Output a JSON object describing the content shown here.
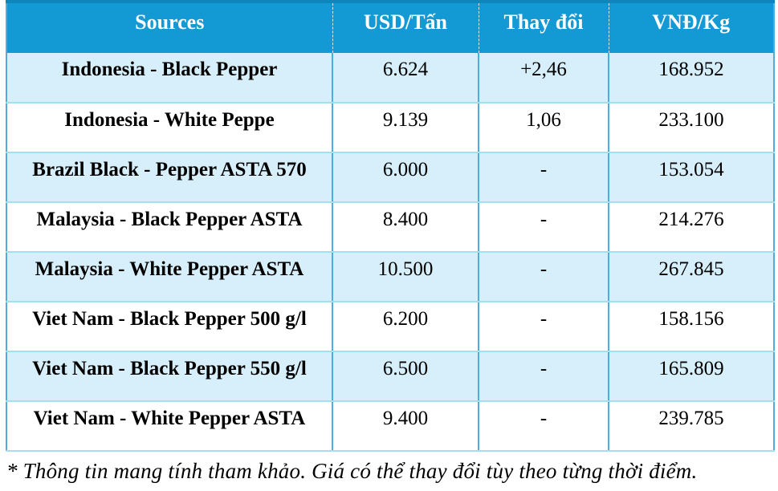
{
  "chart_data": {
    "type": "table",
    "title": "Pepper price table by source",
    "columns": [
      "Sources",
      "USD/Tấn",
      "Thay đổi",
      "VNĐ/Kg"
    ],
    "rows": [
      [
        "Indonesia - Black Pepper",
        "6.624",
        "+2,46",
        "168.952"
      ],
      [
        "Indonesia - White Peppe",
        "9.139",
        "1,06",
        "233.100"
      ],
      [
        "Brazil Black - Pepper ASTA 570",
        "6.000",
        "-",
        "153.054"
      ],
      [
        "Malaysia - Black Pepper ASTA",
        "8.400",
        "-",
        "214.276"
      ],
      [
        "Malaysia - White Pepper ASTA",
        "10.500",
        "-",
        "267.845"
      ],
      [
        "Viet Nam - Black Pepper 500 g/l",
        "6.200",
        "-",
        "158.156"
      ],
      [
        "Viet Nam - Black Pepper 550 g/l",
        "6.500",
        "-",
        "165.809"
      ],
      [
        "Viet Nam - White Pepper ASTA",
        "9.400",
        "-",
        "239.785"
      ]
    ],
    "footnote": "* Thông tin mang tính tham khảo. Giá có thể thay đổi tùy theo từng thời điểm.",
    "layout_hints": {
      "striped": true,
      "stripe_pattern": "odd rows light blue, even rows white",
      "header_position": "top"
    }
  },
  "colors": {
    "header_bg": "#1399D4",
    "header_top": "#0F86BB",
    "header_text": "#FFFFFF",
    "header_divider": "#D9EEF7",
    "row_alt_bg": "#D7EFFA",
    "row_bg": "#FFFFFF",
    "body_text": "#000000",
    "vertical_border": "#4FACDC",
    "horizontal_border": "#A5DEEF"
  }
}
